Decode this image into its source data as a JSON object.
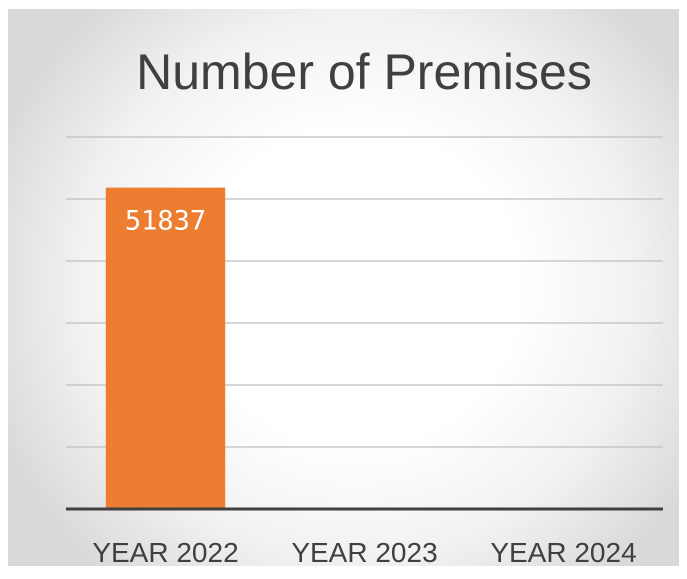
{
  "chart_data": {
    "type": "bar",
    "title": "Number of Premises",
    "categories": [
      "YEAR 2022",
      "YEAR 2023",
      "YEAR 2024"
    ],
    "values": [
      51837,
      null,
      null
    ],
    "data_labels": [
      "51837",
      "",
      ""
    ],
    "ylim": [
      0,
      60000
    ],
    "grid": true,
    "legend": "none",
    "colors": {
      "bar": "#ed7d31",
      "grid": "#bfbfbf",
      "axis": "#404040",
      "text": "#404040",
      "label": "#ffffff"
    }
  }
}
